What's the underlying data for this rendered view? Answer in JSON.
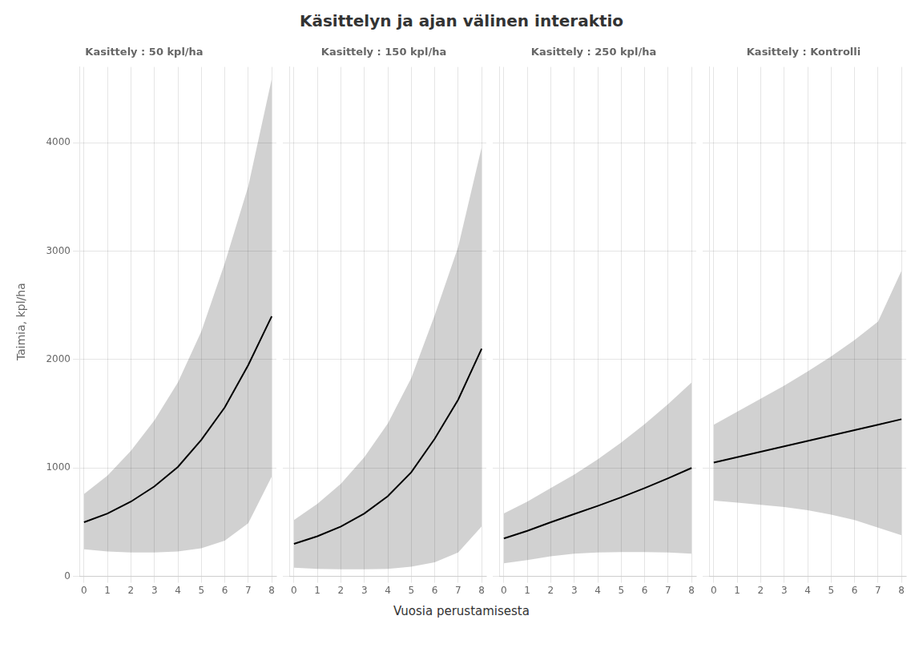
{
  "chart_data": {
    "type": "line",
    "title": "Käsittelyn ja ajan välinen interaktio",
    "xlabel": "Vuosia perustamisesta",
    "xlim": [
      -0.2,
      8.2
    ],
    "xticks": [
      0,
      1,
      2,
      3,
      4,
      5,
      6,
      7,
      8
    ],
    "ylim": [
      0,
      4700
    ],
    "yticks": [
      0,
      1000,
      2000,
      3000,
      4000
    ],
    "panels": [
      {
        "title": "Kasittely : 50 kpl/ha",
        "ylabel": "Taimia, kpl/ha",
        "color": "#000000",
        "x": [
          0,
          1,
          2,
          3,
          4,
          5,
          6,
          7,
          8
        ],
        "values": [
          500,
          580,
          690,
          830,
          1010,
          1260,
          1560,
          1950,
          2400
        ],
        "lower": [
          250,
          230,
          220,
          220,
          230,
          260,
          330,
          490,
          920
        ],
        "upper": [
          760,
          930,
          1160,
          1440,
          1790,
          2260,
          2890,
          3600,
          4590
        ]
      },
      {
        "title": "Kasittely : 150 kpl/ha",
        "color": "#000000",
        "tick_labels": "x",
        "x": [
          0,
          1,
          2,
          3,
          4,
          5,
          6,
          7,
          8
        ],
        "values": [
          300,
          370,
          460,
          580,
          740,
          960,
          1270,
          1630,
          2100
        ],
        "lower": [
          80,
          70,
          65,
          65,
          70,
          90,
          130,
          220,
          460
        ],
        "upper": [
          520,
          670,
          855,
          1100,
          1410,
          1830,
          2410,
          3040,
          3960
        ]
      },
      {
        "title": "Kasittely : 250 kpl/ha",
        "color": "#000000",
        "tick_labels": "x",
        "x": [
          0,
          1,
          2,
          3,
          4,
          5,
          6,
          7,
          8
        ],
        "values": [
          350,
          420,
          500,
          575,
          650,
          730,
          815,
          905,
          1000
        ],
        "lower": [
          120,
          150,
          185,
          210,
          220,
          225,
          225,
          220,
          210
        ],
        "upper": [
          580,
          690,
          815,
          940,
          1080,
          1235,
          1405,
          1590,
          1790
        ]
      },
      {
        "title": "Kasittely : Kontrolli",
        "color": "#000000",
        "tick_labels": "x",
        "x": [
          0,
          1,
          2,
          3,
          4,
          5,
          6,
          7,
          8
        ],
        "values": [
          1050,
          1100,
          1150,
          1200,
          1250,
          1300,
          1350,
          1400,
          1450
        ],
        "lower": [
          700,
          680,
          660,
          640,
          610,
          570,
          520,
          450,
          380
        ],
        "upper": [
          1400,
          1520,
          1640,
          1760,
          1890,
          2030,
          2180,
          2350,
          2820
        ]
      }
    ]
  }
}
